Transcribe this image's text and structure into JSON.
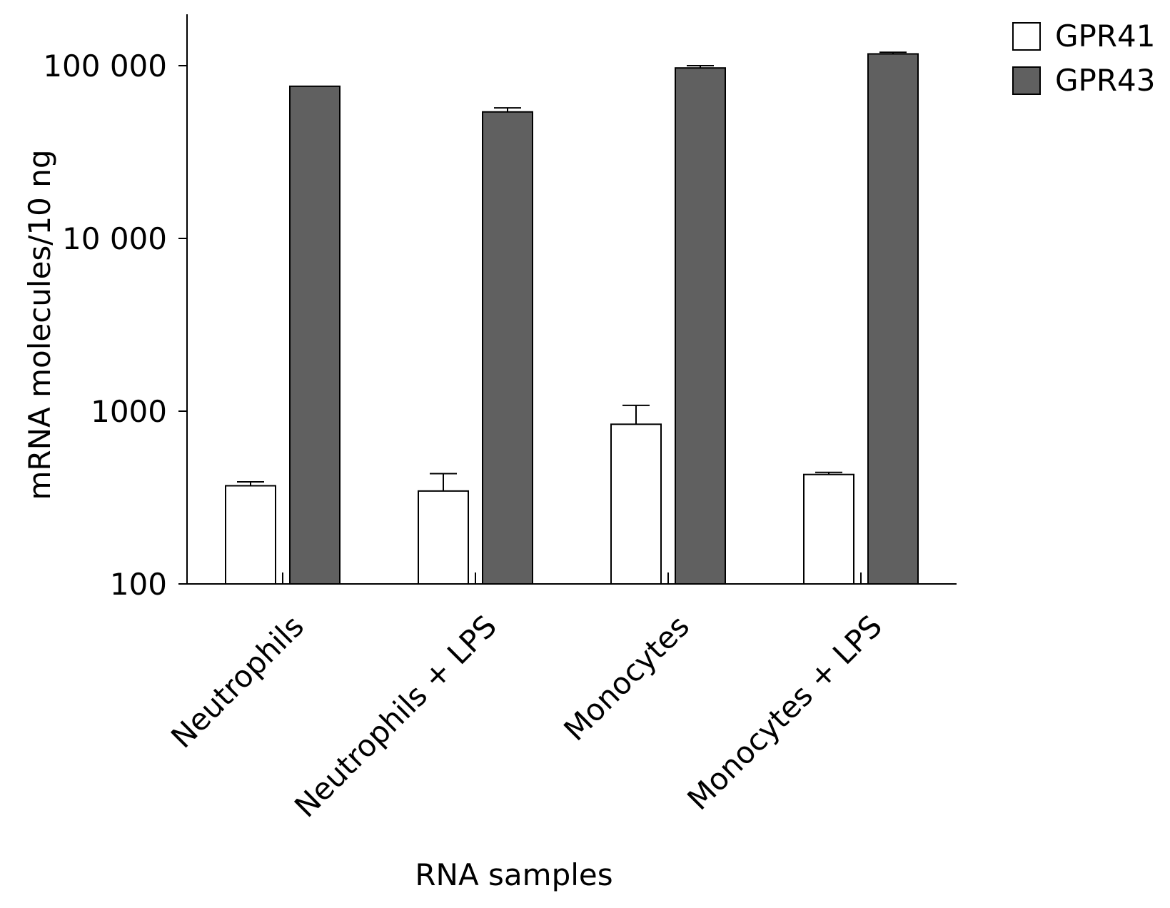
{
  "chart_data": {
    "type": "bar",
    "title": "",
    "xlabel": "RNA samples",
    "ylabel": "mRNA molecules/10 ng",
    "yscale": "log",
    "ylim": [
      100,
      200000
    ],
    "yticks": [
      {
        "value": 100,
        "label": "100"
      },
      {
        "value": 1000,
        "label": "1000"
      },
      {
        "value": 10000,
        "label": "10 000"
      },
      {
        "value": 100000,
        "label": "100 000"
      }
    ],
    "categories": [
      "Neutrophils",
      "Neutrophils + LPS",
      "Monocytes",
      "Monocytes + LPS"
    ],
    "series": [
      {
        "name": "GPR41",
        "color": "#ffffff",
        "values": [
          370,
          345,
          840,
          430
        ],
        "errors": [
          20,
          90,
          240,
          12
        ]
      },
      {
        "name": "GPR43",
        "color": "#606060",
        "values": [
          76000,
          54000,
          97000,
          117000
        ],
        "errors": [
          0,
          3000,
          3000,
          2500
        ]
      }
    ],
    "legend_position": "top-right",
    "grid": false
  }
}
